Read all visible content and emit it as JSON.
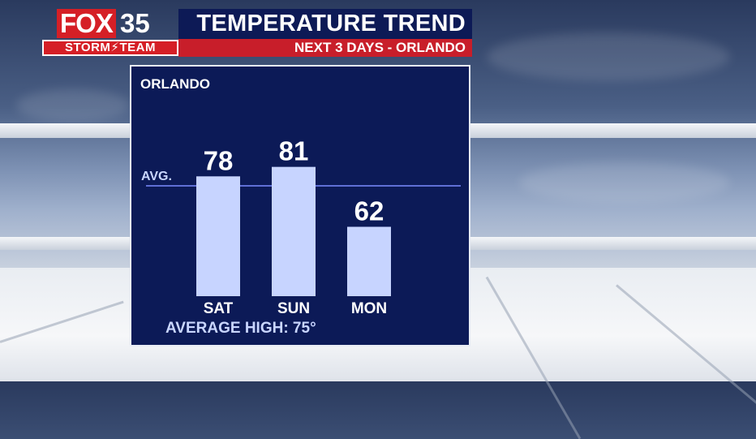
{
  "logo": {
    "brand": "FOX",
    "number": "35",
    "team": "STORM⚡TEAM"
  },
  "header": {
    "title": "TEMPERATURE TREND",
    "subtitle": "NEXT 3 DAYS - ORLANDO"
  },
  "panel": {
    "location_label": "ORLANDO",
    "avg_label": "AVG.",
    "footer": "AVERAGE HIGH: 75°"
  },
  "colors": {
    "bar": "#c7d4ff",
    "panel": "#0c1a57",
    "avg_line": "#5f6fd6",
    "label": "#ffffff",
    "footer": "#c9d6ff"
  },
  "chart_data": {
    "type": "bar",
    "categories": [
      "SAT",
      "SUN",
      "MON"
    ],
    "values": [
      78,
      81,
      62
    ],
    "value_labels": [
      "78",
      "81",
      "62"
    ],
    "average": 75,
    "ylim": [
      40,
      84
    ],
    "grid": false,
    "legend": "none"
  }
}
